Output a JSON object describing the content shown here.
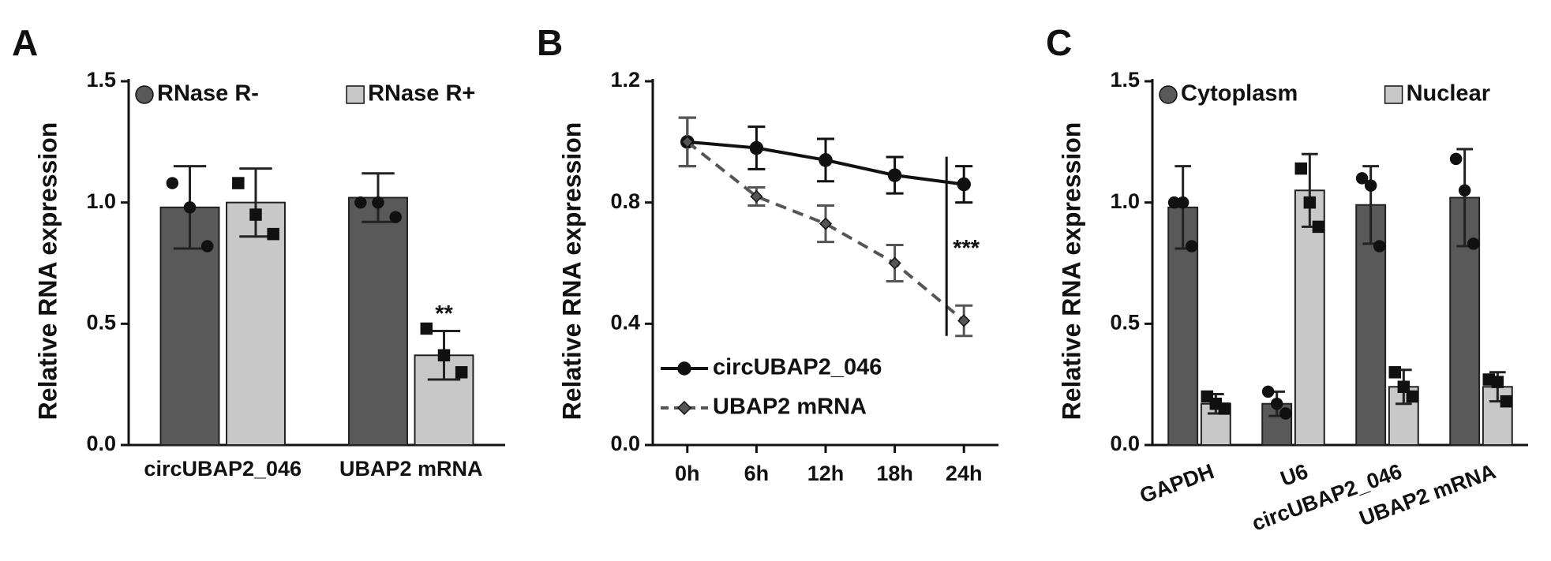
{
  "chart_data": [
    {
      "type": "bar",
      "panel_label": "A",
      "ylabel": "Relative RNA expression",
      "categories": [
        "circUBAP2_046",
        "UBAP2 mRNA"
      ],
      "series": [
        {
          "name": "RNase R-",
          "color": "#595959",
          "marker": "circle",
          "values": [
            0.98,
            1.02
          ],
          "errors": [
            0.17,
            0.1
          ],
          "points": [
            [
              1.08,
              0.98,
              0.82
            ],
            [
              1.0,
              1.0,
              0.94
            ]
          ]
        },
        {
          "name": "RNase R+",
          "color": "#c8c8c8",
          "marker": "square",
          "values": [
            1.0,
            0.37
          ],
          "errors": [
            0.14,
            0.1
          ],
          "points": [
            [
              1.08,
              0.95,
              0.87
            ],
            [
              0.48,
              0.37,
              0.3
            ]
          ]
        }
      ],
      "ylim": [
        0,
        1.5
      ],
      "yticks": [
        {
          "value": 0,
          "label": "0.0"
        },
        0.5,
        {
          "value": 1,
          "label": "1.0"
        },
        1.5
      ],
      "annotation": "**"
    },
    {
      "type": "line",
      "panel_label": "B",
      "ylabel": "Relative RNA expression",
      "categories": [
        "0h",
        "6h",
        "12h",
        "18h",
        "24h"
      ],
      "series": [
        {
          "name": "circUBAP2_046",
          "color": "#111111",
          "marker": "circle",
          "linestyle": "solid",
          "values": [
            1.0,
            0.98,
            0.94,
            0.89,
            0.86
          ],
          "errors": [
            0.08,
            0.07,
            0.07,
            0.06,
            0.06
          ]
        },
        {
          "name": "UBAP2 mRNA",
          "color": "#555555",
          "marker": "diamond",
          "linestyle": "dashed",
          "values": [
            1.0,
            0.82,
            0.73,
            0.6,
            0.41
          ],
          "errors": [
            0.08,
            0.03,
            0.06,
            0.06,
            0.05
          ]
        }
      ],
      "ylim": [
        0,
        1.2
      ],
      "yticks": [
        {
          "value": 0,
          "label": "0.0"
        },
        0.4,
        0.8,
        1.2
      ],
      "annotation": "***"
    },
    {
      "type": "bar",
      "panel_label": "C",
      "ylabel": "Relative RNA expression",
      "categories": [
        "GAPDH",
        "U6",
        "circUBAP2_046",
        "UBAP2 mRNA"
      ],
      "series": [
        {
          "name": "Cytoplasm",
          "color": "#595959",
          "marker": "circle",
          "values": [
            0.98,
            0.17,
            0.99,
            1.02
          ],
          "errors": [
            0.17,
            0.05,
            0.16,
            0.2
          ],
          "points": [
            [
              1.0,
              1.0,
              0.82
            ],
            [
              0.22,
              0.17,
              0.13
            ],
            [
              1.1,
              1.07,
              0.82
            ],
            [
              1.18,
              1.05,
              0.83
            ]
          ]
        },
        {
          "name": "Nuclear",
          "color": "#c8c8c8",
          "marker": "square",
          "values": [
            0.17,
            1.05,
            0.24,
            0.24
          ],
          "errors": [
            0.04,
            0.15,
            0.07,
            0.06
          ],
          "points": [
            [
              0.2,
              0.17,
              0.15
            ],
            [
              1.14,
              1.0,
              0.9
            ],
            [
              0.3,
              0.24,
              0.2
            ],
            [
              0.27,
              0.26,
              0.18
            ]
          ]
        }
      ],
      "ylim": [
        0,
        1.5
      ],
      "yticks": [
        {
          "value": 0,
          "label": "0.0"
        },
        0.5,
        {
          "value": 1,
          "label": "1.0"
        },
        1.5
      ],
      "xlabel_rotation": -20
    }
  ]
}
